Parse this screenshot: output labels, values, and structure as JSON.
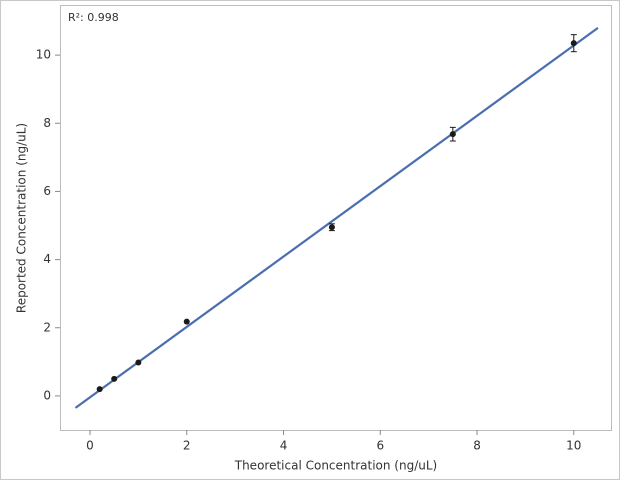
{
  "chart_data": {
    "type": "scatter",
    "annotation": "R²: 0.998",
    "x_label": "Theoretical Concentration (ng/uL)",
    "y_label": "Reported Concentration (ng/uL)",
    "xlim": [
      -0.62,
      10.79
    ],
    "ylim": [
      -1.0,
      11.47
    ],
    "xticks": [
      0,
      2,
      4,
      6,
      8,
      10
    ],
    "yticks": [
      0,
      2,
      4,
      6,
      8,
      10
    ],
    "series": [
      {
        "type": "line",
        "color": "#4a6eb0",
        "x": [
          -0.3,
          10.5
        ],
        "values": [
          -0.35,
          10.8
        ]
      },
      {
        "type": "scatter",
        "color": "#1a1a1a",
        "x": [
          0.2,
          0.5,
          1,
          2,
          5,
          7.5,
          10
        ],
        "values": [
          0.2,
          0.5,
          0.98,
          2.18,
          4.95,
          7.68,
          10.35
        ],
        "errors": [
          null,
          null,
          null,
          null,
          0.1,
          0.2,
          0.25
        ]
      }
    ]
  }
}
